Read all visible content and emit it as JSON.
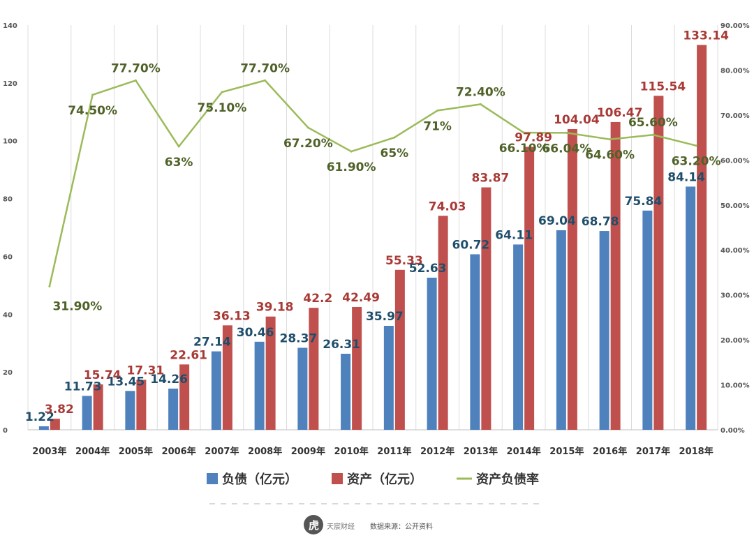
{
  "chart_data": {
    "type": "bar",
    "categories": [
      "2003年",
      "2004年",
      "2005年",
      "2006年",
      "2007年",
      "2008年",
      "2009年",
      "2010年",
      "2011年",
      "2012年",
      "2013年",
      "2014年",
      "2015年",
      "2016年",
      "2017年",
      "2018年"
    ],
    "series": [
      {
        "name": "负债（亿元）",
        "type": "bar",
        "axis": "left",
        "color": "#4f81bd",
        "label_color": "#1f4e6b",
        "values": [
          1.22,
          11.73,
          13.45,
          14.26,
          27.14,
          30.46,
          28.37,
          26.31,
          35.97,
          52.63,
          60.72,
          64.11,
          69.04,
          68.78,
          75.84,
          84.14
        ],
        "labels": [
          "1.22",
          "11.73",
          "13.45",
          "14.26",
          "27.14",
          "30.46",
          "28.37",
          "26.31",
          "35.97",
          "52.63",
          "60.72",
          "64.11",
          "69.04",
          "68.78",
          "75.84",
          "84.14"
        ]
      },
      {
        "name": "资产（亿元）",
        "type": "bar",
        "axis": "left",
        "color": "#c0504d",
        "label_color": "#a83a36",
        "values": [
          3.82,
          15.74,
          17.31,
          22.61,
          36.13,
          39.18,
          42.2,
          42.49,
          55.33,
          74.03,
          83.87,
          97.89,
          104.04,
          106.47,
          115.54,
          133.14
        ],
        "labels": [
          "3.82",
          "15.74",
          "17.31",
          "22.61",
          "36.13",
          "39.18",
          "42.2",
          "42.49",
          "55.33",
          "74.03",
          "83.87",
          "97.89",
          "104.04",
          "106.47",
          "115.54",
          "133.14"
        ]
      },
      {
        "name": "资产负债率",
        "type": "line",
        "axis": "right",
        "color": "#9bbb59",
        "label_color": "#4f6228",
        "values": [
          31.9,
          74.5,
          77.7,
          63,
          75.1,
          77.7,
          67.2,
          61.9,
          65,
          71,
          72.4,
          66.1,
          66.04,
          64.6,
          65.6,
          63.2
        ],
        "labels": [
          "31.90%",
          "74.50%",
          "77.70%",
          "63%",
          "75.10%",
          "77.70%",
          "67.20%",
          "61.90%",
          "65%",
          "71%",
          "72.40%",
          "66.10%",
          "66.04%",
          "64.60%",
          "65.60%",
          "63.20%"
        ]
      }
    ],
    "y_left": {
      "min": 0,
      "max": 140,
      "ticks": [
        "0",
        "20",
        "40",
        "60",
        "80",
        "100",
        "120",
        "140"
      ]
    },
    "y_right": {
      "min": 0,
      "max": 90,
      "ticks": [
        "0.00%",
        "10.00%",
        "20.00%",
        "30.00%",
        "40.00%",
        "50.00%",
        "60.00%",
        "70.00%",
        "80.00%",
        "90.00%"
      ]
    },
    "grid": true,
    "legend_position": "bottom"
  },
  "footer": {
    "logo_text": "天宸财经",
    "source_text": "数据来源：公开资料"
  }
}
